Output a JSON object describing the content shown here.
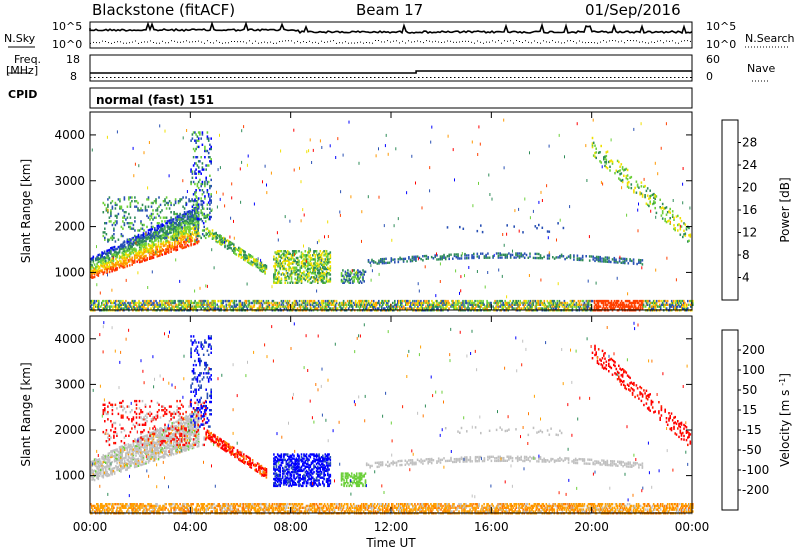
{
  "header": {
    "station": "Blackstone (fitACF)",
    "beam": "Beam 17",
    "date": "01/Sep/2016"
  },
  "top_panels": {
    "noise_left_label": "N.Sky",
    "noise_right_label": "N.Search",
    "noise_ticks": [
      "10^5",
      "10^0"
    ],
    "freq_label": "Freq.",
    "freq_unit": "[MHz]",
    "freq_ticks": [
      "18",
      "8"
    ],
    "nave_label": "Nave",
    "nave_ticks": [
      "60",
      "0"
    ],
    "cpid_label": "CPID",
    "cpid_value": "normal (fast) 151"
  },
  "chart_data": [
    {
      "type": "heatmap",
      "quantity": "Power",
      "ylabel": "Slant Range [km]",
      "yticks": [
        1000,
        2000,
        3000,
        4000
      ],
      "ylim": [
        180,
        4500
      ],
      "xlabel": "Time UT",
      "xticks": [
        "00:00",
        "04:00",
        "08:00",
        "12:00",
        "16:00",
        "20:00",
        "00:00"
      ],
      "colorbar_label": "Power [dB]",
      "colorbar_ticks": [
        "28",
        "24",
        "20",
        "16",
        "12",
        "8",
        "4"
      ],
      "colors": [
        "#0000ff",
        "#2850b4",
        "#2e8b57",
        "#6ccf3a",
        "#f0e000",
        "#ff9800",
        "#ff4000",
        "#ff0000"
      ]
    },
    {
      "type": "heatmap",
      "quantity": "Velocity",
      "ylabel": "Slant Range [km]",
      "yticks": [
        1000,
        2000,
        3000,
        4000
      ],
      "ylim": [
        180,
        4500
      ],
      "xlabel": "Time UT",
      "xticks": [
        "00:00",
        "04:00",
        "08:00",
        "12:00",
        "16:00",
        "20:00",
        "00:00"
      ],
      "colorbar_label": "Velocity [m s",
      "colorbar_label_sup": "-1",
      "colorbar_label_end": "]",
      "colorbar_ticks": [
        "200",
        "100",
        "50",
        "15",
        "-15",
        "-50",
        "-100",
        "-200"
      ],
      "colors": [
        "#0000ff",
        "#2850b4",
        "#2e8b57",
        "#6ccf3a",
        "#c0c0c0",
        "#ffa000",
        "#ff7800",
        "#ff2000",
        "#ff0000"
      ]
    }
  ],
  "xlabel": "Time UT"
}
